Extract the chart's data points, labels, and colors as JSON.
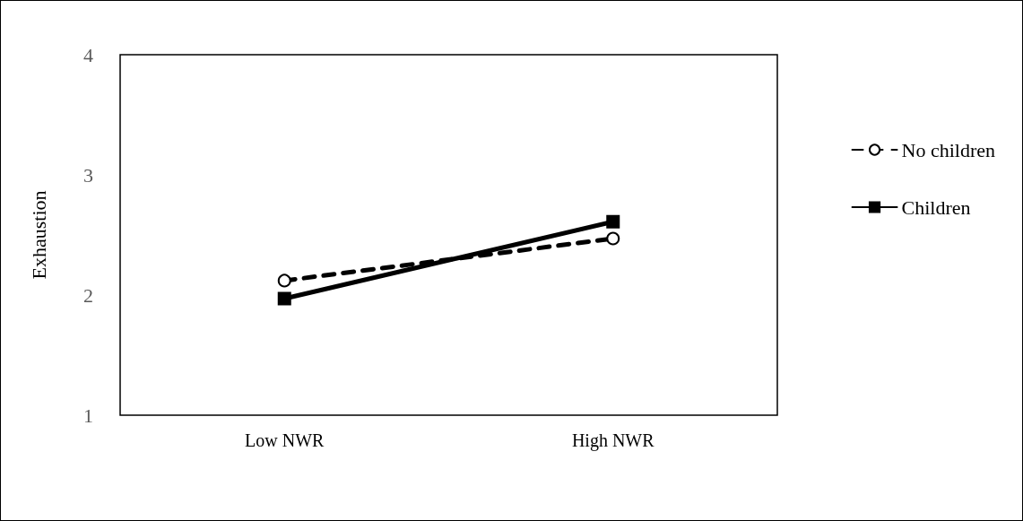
{
  "chart_data": {
    "type": "line",
    "ylabel": "Exhaustion",
    "categories": [
      "Low NWR",
      "High NWR"
    ],
    "series": [
      {
        "name": "No children",
        "color": "#000000",
        "values": [
          2.12,
          2.47
        ],
        "marker": "circle",
        "line_style": "dashed"
      },
      {
        "name": "Children",
        "color": "#000000",
        "values": [
          1.97,
          2.61
        ],
        "marker": "square",
        "line_style": "solid"
      }
    ],
    "ylim": [
      1,
      4
    ],
    "yticks": [
      1,
      2,
      3,
      4
    ],
    "grid": false,
    "legend": "right"
  }
}
